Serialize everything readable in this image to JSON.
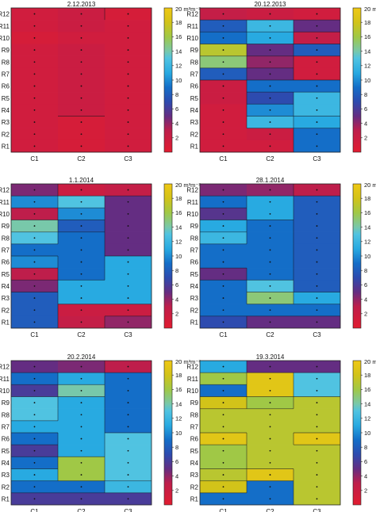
{
  "figure": {
    "colorbar_unit": "20 m³m⁻³"
  },
  "chart_data": [
    {
      "type": "heatmap",
      "title": "2.12.2013",
      "x_categories": [
        "C1",
        "C2",
        "C3"
      ],
      "y_categories": [
        "R12",
        "R11",
        "R10",
        "R9",
        "R8",
        "R7",
        "R6",
        "R5",
        "R4",
        "R3",
        "R2",
        "R1"
      ],
      "colorbar": {
        "range": [
          0,
          20
        ],
        "ticks": [
          2,
          4,
          6,
          8,
          10,
          12,
          14,
          16,
          18
        ]
      },
      "values": [
        [
          1.5,
          2,
          1
        ],
        [
          1.5,
          2,
          1.5
        ],
        [
          1,
          1.5,
          1.5
        ],
        [
          1.5,
          2,
          1.5
        ],
        [
          1.5,
          2,
          1.5
        ],
        [
          1.5,
          2,
          1.5
        ],
        [
          1.5,
          2,
          1.5
        ],
        [
          1.5,
          2,
          1.5
        ],
        [
          1.5,
          2,
          1.5
        ],
        [
          1.5,
          1,
          1.5
        ],
        [
          1.5,
          1,
          1.5
        ],
        [
          1.5,
          1,
          1.5
        ]
      ]
    },
    {
      "type": "heatmap",
      "title": "20.12.2013",
      "x_categories": [
        "C1",
        "C2",
        "C3"
      ],
      "y_categories": [
        "R12",
        "R11",
        "R10",
        "R9",
        "R8",
        "R7",
        "R6",
        "R5",
        "R4",
        "R3",
        "R2",
        "R1"
      ],
      "colorbar": {
        "range": [
          0,
          20
        ],
        "ticks": [
          2,
          4,
          6,
          8,
          10,
          12,
          14,
          16,
          18
        ]
      },
      "values": [
        [
          2.5,
          2,
          1.5
        ],
        [
          8,
          12,
          5
        ],
        [
          9,
          11,
          2.5
        ],
        [
          17,
          5,
          8
        ],
        [
          15,
          4,
          1.5
        ],
        [
          8,
          5,
          1.5
        ],
        [
          2,
          9,
          9
        ],
        [
          2,
          7,
          12
        ],
        [
          1.5,
          10,
          12
        ],
        [
          1.5,
          12,
          11
        ],
        [
          1.5,
          2,
          9
        ],
        [
          1.5,
          1.5,
          9
        ]
      ]
    },
    {
      "type": "heatmap",
      "title": "1.1.2014",
      "x_categories": [
        "C1",
        "C2",
        "C3"
      ],
      "y_categories": [
        "R12",
        "R11",
        "R10",
        "R9",
        "R8",
        "R7",
        "R6",
        "R5",
        "R4",
        "R3",
        "R2",
        "R1"
      ],
      "colorbar": {
        "range": [
          0,
          20
        ],
        "ticks": [
          2,
          4,
          6,
          8,
          10,
          12,
          14,
          16,
          18
        ]
      },
      "values": [
        [
          4.5,
          2,
          2.5
        ],
        [
          10,
          13,
          5
        ],
        [
          3,
          10,
          5
        ],
        [
          14,
          8,
          5
        ],
        [
          13,
          9,
          5
        ],
        [
          9,
          9,
          5
        ],
        [
          10,
          9,
          11
        ],
        [
          3,
          9,
          11
        ],
        [
          4.5,
          11,
          11
        ],
        [
          8,
          11,
          11
        ],
        [
          8,
          2,
          2
        ],
        [
          8,
          2.5,
          4
        ]
      ]
    },
    {
      "type": "heatmap",
      "title": "28.1.2014",
      "x_categories": [
        "C1",
        "C2",
        "C3"
      ],
      "y_categories": [
        "R12",
        "R11",
        "R10",
        "R9",
        "R8",
        "R7",
        "R6",
        "R5",
        "R4",
        "R3",
        "R2",
        "R1"
      ],
      "colorbar": {
        "range": [
          0,
          20
        ],
        "ticks": [
          2,
          4,
          6,
          8,
          10,
          12,
          14,
          16,
          18
        ]
      },
      "values": [
        [
          4.5,
          4,
          3
        ],
        [
          9,
          11,
          8
        ],
        [
          5.5,
          11,
          8
        ],
        [
          11,
          9,
          8
        ],
        [
          12,
          9,
          8
        ],
        [
          9,
          9,
          8
        ],
        [
          9,
          9,
          8
        ],
        [
          5,
          9,
          8
        ],
        [
          9,
          13,
          8
        ],
        [
          9,
          15,
          11
        ],
        [
          9,
          9,
          9
        ],
        [
          7,
          5,
          5
        ]
      ]
    },
    {
      "type": "heatmap",
      "title": "20.2.2014",
      "x_categories": [
        "C1",
        "C2",
        "C3"
      ],
      "y_categories": [
        "R12",
        "R11",
        "R10",
        "R9",
        "R8",
        "R7",
        "R6",
        "R5",
        "R4",
        "R3",
        "R2",
        "R1"
      ],
      "colorbar": {
        "range": [
          0,
          20
        ],
        "ticks": [
          2,
          4,
          6,
          8,
          10,
          12,
          14,
          16,
          18
        ]
      },
      "values": [
        [
          5,
          4.5,
          3
        ],
        [
          9,
          11,
          9
        ],
        [
          6,
          14,
          9
        ],
        [
          13,
          11,
          9
        ],
        [
          13,
          11,
          9
        ],
        [
          11,
          11,
          9
        ],
        [
          9,
          11,
          13
        ],
        [
          6,
          11,
          13
        ],
        [
          9,
          16,
          13
        ],
        [
          11,
          16,
          13
        ],
        [
          9,
          9,
          12
        ],
        [
          6,
          6,
          6
        ]
      ]
    },
    {
      "type": "heatmap",
      "title": "19.3.2014",
      "x_categories": [
        "C1",
        "C2",
        "C3"
      ],
      "y_categories": [
        "R12",
        "R11",
        "R10",
        "R9",
        "R8",
        "R7",
        "R6",
        "R5",
        "R4",
        "R3",
        "R2",
        "R1"
      ],
      "colorbar": {
        "range": [
          0,
          20
        ],
        "ticks": [
          2,
          4,
          6,
          8,
          10,
          12,
          14,
          16,
          18
        ]
      },
      "values": [
        [
          11,
          5,
          5
        ],
        [
          16,
          19,
          13
        ],
        [
          9,
          19,
          13
        ],
        [
          18,
          16,
          17
        ],
        [
          17,
          17,
          17
        ],
        [
          17,
          17,
          17
        ],
        [
          19,
          17,
          19
        ],
        [
          16,
          17,
          17
        ],
        [
          16,
          17,
          17
        ],
        [
          17,
          19,
          17
        ],
        [
          18,
          9,
          17
        ],
        [
          9,
          9,
          17
        ]
      ]
    }
  ]
}
